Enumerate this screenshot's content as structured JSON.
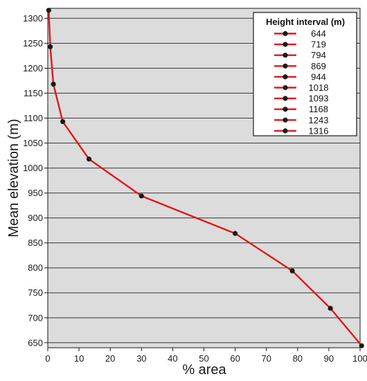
{
  "chart_data": {
    "type": "line",
    "title": "",
    "xlabel": "% area",
    "ylabel": "Mean elevation (m)",
    "xlim": [
      0,
      100
    ],
    "ylim": [
      640,
      1320
    ],
    "xticks": [
      0,
      10,
      20,
      30,
      40,
      50,
      60,
      70,
      80,
      90,
      100
    ],
    "yticks": [
      650,
      700,
      750,
      800,
      850,
      900,
      950,
      1000,
      1050,
      1100,
      1150,
      1200,
      1250,
      1300
    ],
    "grid": "horizontal",
    "legend_position": "top-right",
    "legend_title": "Height interval (m)",
    "legend_labels": [
      "644",
      "719",
      "794",
      "869",
      "944",
      "1018",
      "1093",
      "1168",
      "1243",
      "1316"
    ],
    "series": [
      {
        "color": "#e0181b",
        "marker_color": "#1a1a1a",
        "points": [
          {
            "x": 100.5,
            "y": 644
          },
          {
            "x": 90.5,
            "y": 719
          },
          {
            "x": 78.3,
            "y": 794
          },
          {
            "x": 60.0,
            "y": 869
          },
          {
            "x": 30.0,
            "y": 944
          },
          {
            "x": 13.2,
            "y": 1018
          },
          {
            "x": 4.8,
            "y": 1093
          },
          {
            "x": 1.8,
            "y": 1168
          },
          {
            "x": 0.8,
            "y": 1243
          },
          {
            "x": 0.3,
            "y": 1316
          }
        ]
      }
    ],
    "colors": {
      "plot_bg": "#dcdcdc",
      "grid": "#3a3a3a",
      "line": "#e0181b",
      "marker": "#1a1a1a"
    }
  }
}
